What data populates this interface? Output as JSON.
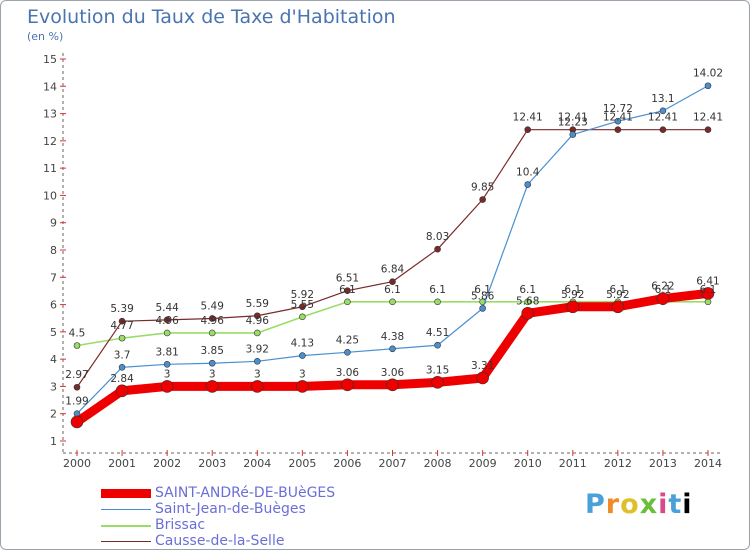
{
  "title": "Evolution du Taux de Taxe d'Habitation",
  "subtitle": "(en %)",
  "logo_text": "Proxiti",
  "chart_data": {
    "type": "line",
    "x": [
      2000,
      2001,
      2002,
      2003,
      2004,
      2005,
      2006,
      2007,
      2008,
      2009,
      2010,
      2011,
      2012,
      2013,
      2014
    ],
    "ylim": [
      1,
      15
    ],
    "yticks": [
      1,
      2,
      3,
      4,
      5,
      6,
      7,
      8,
      9,
      10,
      11,
      12,
      13,
      14,
      15
    ],
    "grid": false,
    "legend_position": "bottom-left",
    "series": [
      {
        "name": "SAINT-ANDRé-DE-BUèGES",
        "color": "#ee0000",
        "values": [
          1.7,
          2.84,
          3,
          3,
          3,
          3,
          3.06,
          3.06,
          3.15,
          3.31,
          5.68,
          5.92,
          5.92,
          6.22,
          6.41
        ],
        "labels": [
          "",
          "2.84",
          "3",
          "3",
          "3",
          "3",
          "3.06",
          "3.06",
          "3.15",
          "3.31",
          "5.68",
          "5.92",
          "5.92",
          "6.22",
          "6.41"
        ]
      },
      {
        "name": "Saint-Jean-de-Buèges",
        "color": "#4a90d0",
        "values": [
          2.0,
          3.7,
          3.81,
          3.85,
          3.92,
          4.13,
          4.25,
          4.38,
          4.51,
          5.86,
          10.4,
          12.23,
          12.72,
          13.1,
          14.02
        ],
        "labels": [
          "1.99",
          "3.7",
          "3.81",
          "3.85",
          "3.92",
          "4.13",
          "4.25",
          "4.38",
          "4.51",
          "5.86",
          "10.4",
          "12.23",
          "12.72",
          "13.1",
          "14.02"
        ]
      },
      {
        "name": "Brissac",
        "color": "#99dd66",
        "values": [
          4.5,
          4.77,
          4.96,
          4.96,
          4.96,
          5.55,
          6.1,
          6.1,
          6.1,
          6.1,
          6.1,
          6.1,
          6.1,
          6.1,
          6.1
        ],
        "labels": [
          "4.5",
          "4.77",
          "4.96",
          "4.96",
          "4.96",
          "5.55",
          "6.1",
          "6.1",
          "6.1",
          "6.1",
          "6.1",
          "6.1",
          "6.1",
          "6.1",
          "6.1"
        ]
      },
      {
        "name": "Causse-de-la-Selle",
        "color": "#7a2a2a",
        "values": [
          2.97,
          5.39,
          5.44,
          5.49,
          5.59,
          5.92,
          6.51,
          6.84,
          8.03,
          9.85,
          12.41,
          12.41,
          12.41,
          12.41,
          12.41
        ],
        "labels": [
          "2.97",
          "5.39",
          "5.44",
          "5.49",
          "5.59",
          "5.92",
          "6.51",
          "6.84",
          "8.03",
          "9.85",
          "12.41",
          "12.41",
          "12.41",
          "12.41",
          "12.41"
        ]
      }
    ]
  }
}
